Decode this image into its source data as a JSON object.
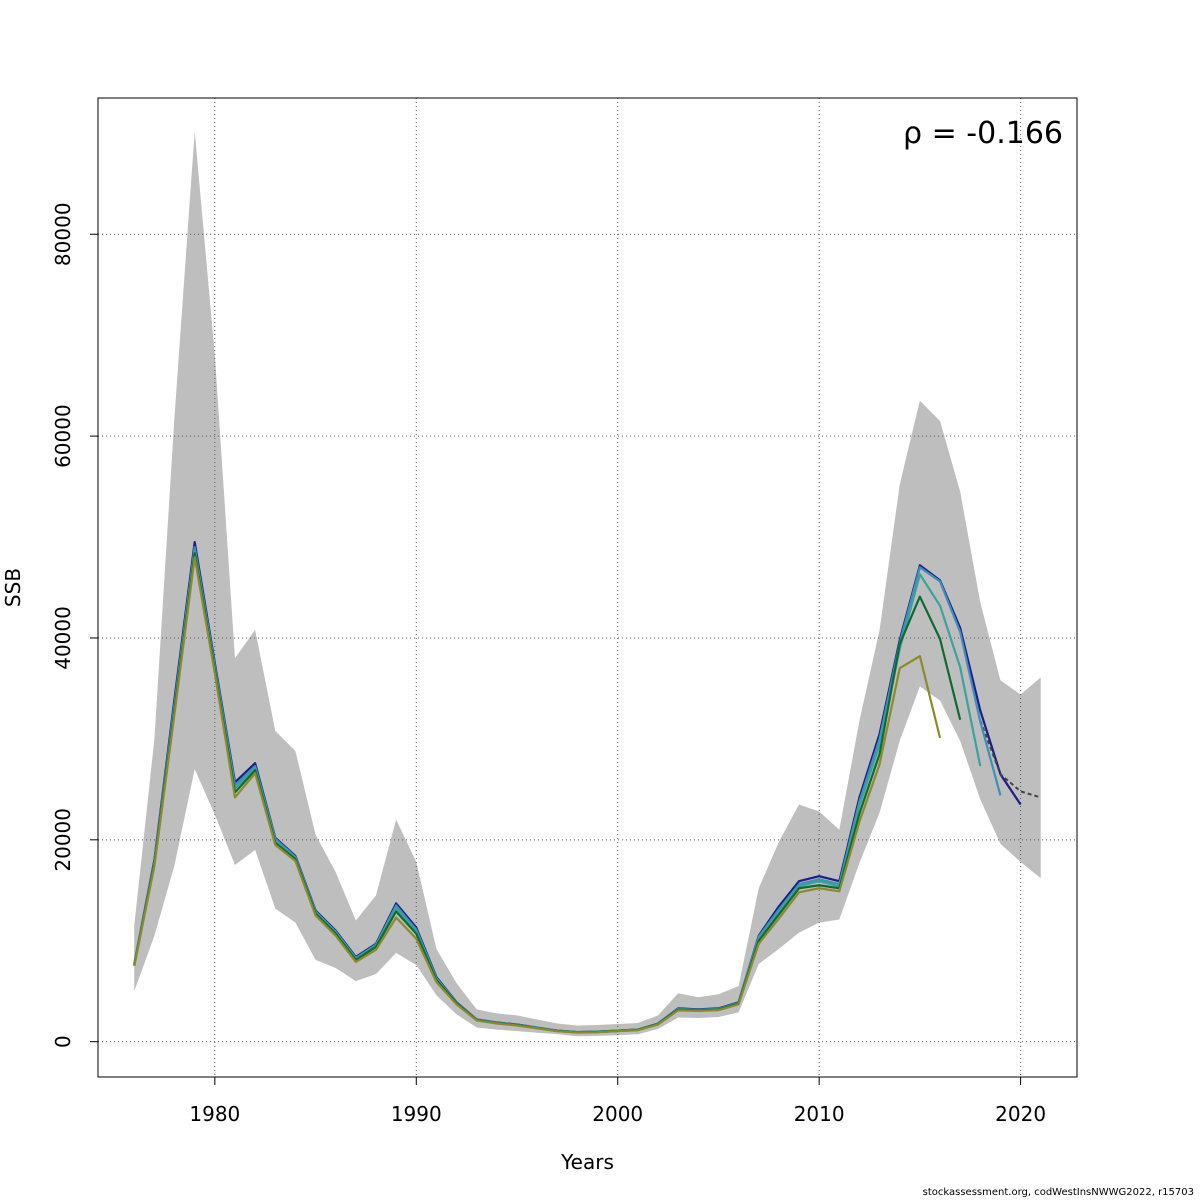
{
  "chart_data": {
    "type": "line",
    "title": "",
    "xlabel": "Years",
    "ylabel": "SSB",
    "xlim": [
      1974.2,
      2022.8
    ],
    "ylim": [
      -3500,
      93500
    ],
    "x_ticks": [
      1980,
      1990,
      2000,
      2010,
      2020
    ],
    "y_ticks": [
      0,
      20000,
      40000,
      60000,
      80000
    ],
    "grid": true,
    "annotation": "ρ = -0.166",
    "colors": {
      "band": "#bebebe",
      "gridline": "#555555",
      "axis": "#000000",
      "mohn_last_peel": "#8b8b2b"
    },
    "confidence_band": {
      "x": [
        1976,
        1977,
        1978,
        1979,
        1980,
        1981,
        1982,
        1983,
        1984,
        1985,
        1986,
        1987,
        1988,
        1989,
        1990,
        1991,
        1992,
        1993,
        1994,
        1995,
        1996,
        1997,
        1998,
        1999,
        2000,
        2001,
        2002,
        2003,
        2004,
        2005,
        2006,
        2007,
        2008,
        2009,
        2010,
        2011,
        2012,
        2013,
        2014,
        2015,
        2016,
        2017,
        2018,
        2019,
        2020,
        2021
      ],
      "upper": [
        11500,
        30000,
        62000,
        90200,
        68000,
        38000,
        40800,
        30800,
        28800,
        20500,
        16800,
        12000,
        14500,
        22000,
        17800,
        9200,
        5800,
        3200,
        2800,
        2600,
        2200,
        1800,
        1600,
        1650,
        1750,
        1850,
        2600,
        4800,
        4400,
        4700,
        5500,
        15200,
        19800,
        23500,
        22800,
        21000,
        31800,
        40800,
        55200,
        63500,
        61500,
        54500,
        43500,
        35800,
        34400,
        36100
      ],
      "lower": [
        5000,
        10500,
        17500,
        27000,
        22500,
        17500,
        19000,
        13200,
        11800,
        8100,
        7300,
        6000,
        6700,
        8800,
        7600,
        4600,
        2700,
        1400,
        1200,
        1050,
        880,
        750,
        540,
        580,
        640,
        740,
        1250,
        2400,
        2350,
        2450,
        2900,
        7700,
        9200,
        10800,
        11800,
        12100,
        17700,
        22700,
        29800,
        35200,
        33800,
        29800,
        24000,
        19600,
        17800,
        16200
      ]
    },
    "series": [
      {
        "color": "#1c1c8a",
        "x": [
          1976,
          1977,
          1978,
          1979,
          1980,
          1981,
          1982,
          1983,
          1984,
          1985,
          1986,
          1987,
          1988,
          1989,
          1990,
          1991,
          1992,
          1993,
          1994,
          1995,
          1996,
          1997,
          1998,
          1999,
          2000,
          2001,
          2002,
          2003,
          2004,
          2005,
          2006,
          2007,
          2008,
          2009,
          2010,
          2011,
          2012,
          2013,
          2014,
          2015,
          2016,
          2017,
          2018,
          2019,
          2020
        ],
        "values": [
          7700,
          18000,
          34000,
          49500,
          37500,
          25700,
          27600,
          20200,
          18400,
          13000,
          11000,
          8400,
          9700,
          13700,
          11300,
          6400,
          3900,
          2200,
          1900,
          1700,
          1400,
          1100,
          950,
          1000,
          1100,
          1200,
          1800,
          3300,
          3200,
          3300,
          3900,
          10500,
          13400,
          15900,
          16400,
          15900,
          24200,
          30500,
          39800,
          47200,
          45700,
          41000,
          32800,
          26500,
          23500
        ]
      },
      {
        "color": "#444444",
        "dashed": true,
        "x": [
          2018,
          2019,
          2020,
          2021
        ],
        "values": [
          31800,
          26500,
          24800,
          24200
        ]
      },
      {
        "color": "#3f8fb8",
        "x": [
          1976,
          1977,
          1978,
          1979,
          1980,
          1981,
          1982,
          1983,
          1984,
          1985,
          1986,
          1987,
          1988,
          1989,
          1990,
          1991,
          1992,
          1993,
          1994,
          1995,
          1996,
          1997,
          1998,
          1999,
          2000,
          2001,
          2002,
          2003,
          2004,
          2005,
          2006,
          2007,
          2008,
          2009,
          2010,
          2011,
          2012,
          2013,
          2014,
          2015,
          2016,
          2017,
          2018,
          2019
        ],
        "values": [
          7650,
          17800,
          33500,
          49000,
          37200,
          25400,
          27300,
          20100,
          18300,
          12900,
          10900,
          8300,
          9600,
          13500,
          11100,
          6300,
          3850,
          2180,
          1880,
          1680,
          1390,
          1090,
          940,
          990,
          1090,
          1190,
          1780,
          3250,
          3150,
          3250,
          3850,
          10400,
          13100,
          15600,
          16100,
          15600,
          23800,
          30000,
          39500,
          47000,
          45600,
          40600,
          31700,
          24400
        ]
      },
      {
        "color": "#3aa39a",
        "x": [
          1976,
          1977,
          1978,
          1979,
          1980,
          1981,
          1982,
          1983,
          1984,
          1985,
          1986,
          1987,
          1988,
          1989,
          1990,
          1991,
          1992,
          1993,
          1994,
          1995,
          1996,
          1997,
          1998,
          1999,
          2000,
          2001,
          2002,
          2003,
          2004,
          2005,
          2006,
          2007,
          2008,
          2009,
          2010,
          2011,
          2012,
          2013,
          2014,
          2015,
          2016,
          2017,
          2018
        ],
        "values": [
          7600,
          17700,
          33200,
          48700,
          37000,
          25100,
          27100,
          19900,
          18200,
          12800,
          10800,
          8200,
          9500,
          13200,
          10900,
          6200,
          3820,
          2160,
          1860,
          1660,
          1370,
          1080,
          930,
          980,
          1080,
          1180,
          1760,
          3220,
          3120,
          3220,
          3820,
          10200,
          12900,
          15400,
          15900,
          15400,
          23400,
          29400,
          38900,
          46300,
          43200,
          37100,
          27300
        ]
      },
      {
        "color": "#0e6b2f",
        "x": [
          1976,
          1977,
          1978,
          1979,
          1980,
          1981,
          1982,
          1983,
          1984,
          1985,
          1986,
          1987,
          1988,
          1989,
          1990,
          1991,
          1992,
          1993,
          1994,
          1995,
          1996,
          1997,
          1998,
          1999,
          2000,
          2001,
          2002,
          2003,
          2004,
          2005,
          2006,
          2007,
          2008,
          2009,
          2010,
          2011,
          2012,
          2013,
          2014,
          2015,
          2016,
          2017
        ],
        "values": [
          7550,
          17600,
          32900,
          48400,
          36800,
          24700,
          26900,
          19700,
          18100,
          12700,
          10700,
          8100,
          9400,
          12900,
          10700,
          6100,
          3800,
          2140,
          1840,
          1640,
          1350,
          1060,
          920,
          960,
          1060,
          1160,
          1740,
          3180,
          3100,
          3180,
          3780,
          10000,
          12600,
          15200,
          15500,
          15200,
          22600,
          28500,
          39400,
          44100,
          39900,
          31900
        ]
      },
      {
        "color": "#8b8b2b",
        "x": [
          1976,
          1977,
          1978,
          1979,
          1980,
          1981,
          1982,
          1983,
          1984,
          1985,
          1986,
          1987,
          1988,
          1989,
          1990,
          1991,
          1992,
          1993,
          1994,
          1995,
          1996,
          1997,
          1998,
          1999,
          2000,
          2001,
          2002,
          2003,
          2004,
          2005,
          2006,
          2007,
          2008,
          2009,
          2010,
          2011,
          2012,
          2013,
          2014,
          2015,
          2016
        ],
        "values": [
          7500,
          17400,
          32500,
          48000,
          36500,
          24200,
          26600,
          19500,
          17900,
          12500,
          10500,
          7900,
          9100,
          12300,
          10200,
          5900,
          3700,
          2100,
          1800,
          1600,
          1320,
          1040,
          900,
          940,
          1040,
          1140,
          1700,
          3100,
          3050,
          3120,
          3700,
          9700,
          12200,
          14800,
          15200,
          14900,
          21800,
          27500,
          37000,
          38200,
          30100
        ]
      }
    ],
    "credit": "stockassessment.org, codWestInsNWWG2022, r15703"
  }
}
